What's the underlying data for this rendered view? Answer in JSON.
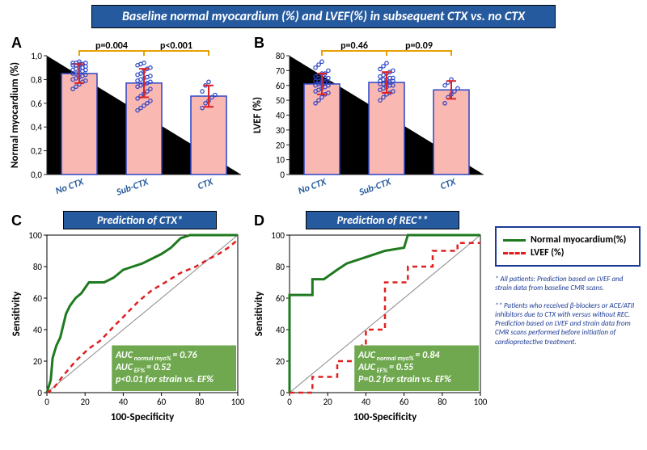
{
  "title": "Baseline normal myocardium (%) and LVEF(%) in subsequent CTX vs. no CTX",
  "panels": {
    "A": "A",
    "B": "B",
    "C": "C",
    "D": "D"
  },
  "subtitles": {
    "C": "Prediction of CTX*",
    "D": "Prediction of REC**"
  },
  "legend": {
    "a": "Normal myocardium(%)",
    "b": "LVEF (%)"
  },
  "legend_colors": {
    "a": "#1f7a1f",
    "b": "#e02020"
  },
  "footnotes": {
    "a": "* All patients: Prediction based on LVEF and strain data from baseline CMR scans.",
    "b": "** Patients who received β-blockers or ACE/ATII inhibitors due to CTX with versus without REC. Prediction based on LVEF and strain data from CMR scans performed before initiation of cardioprotective treatment."
  },
  "barA": {
    "ylabel": "Normal myocardium (%)",
    "ymin": 0.0,
    "ymax": 1.0,
    "ytick": 0.2,
    "cats": [
      "No CTX",
      "Sub-CTX",
      "CTX"
    ],
    "means": [
      0.85,
      0.77,
      0.66
    ],
    "err": [
      0.08,
      0.12,
      0.09
    ],
    "pvals": [
      "p=0.004",
      "p<0.001"
    ],
    "dots": [
      [
        0.72,
        0.74,
        0.76,
        0.78,
        0.79,
        0.8,
        0.81,
        0.82,
        0.83,
        0.84,
        0.85,
        0.85,
        0.86,
        0.87,
        0.88,
        0.88,
        0.89,
        0.9,
        0.9,
        0.91,
        0.92,
        0.92,
        0.93,
        0.93,
        0.94,
        0.94,
        0.94,
        0.95
      ],
      [
        0.54,
        0.56,
        0.58,
        0.6,
        0.62,
        0.64,
        0.66,
        0.68,
        0.7,
        0.72,
        0.74,
        0.75,
        0.76,
        0.77,
        0.78,
        0.79,
        0.8,
        0.81,
        0.82,
        0.83,
        0.84,
        0.85,
        0.87,
        0.89,
        0.9,
        0.92,
        0.93,
        0.94
      ],
      [
        0.56,
        0.6,
        0.62,
        0.65,
        0.67,
        0.7,
        0.75,
        0.78
      ]
    ],
    "bar_color": "#f9b8b2",
    "bar_stroke": "#2a44c7",
    "err_color": "#e02020",
    "dot_stroke": "#2a44c7",
    "bar_width": 0.55
  },
  "barB": {
    "ylabel": "LVEF (%)",
    "ymin": 0,
    "ymax": 80,
    "ytick": 10,
    "cats": [
      "No CTX",
      "Sub-CTX",
      "CTX"
    ],
    "means": [
      61,
      62,
      57
    ],
    "err": [
      7,
      7,
      6
    ],
    "pvals": [
      "p=0.46",
      "p=0.09"
    ],
    "dots": [
      [
        48,
        50,
        52,
        54,
        55,
        56,
        57,
        58,
        59,
        60,
        60,
        61,
        61,
        62,
        62,
        63,
        63,
        64,
        65,
        65,
        66,
        67,
        68,
        68,
        70,
        72,
        74,
        76
      ],
      [
        50,
        52,
        54,
        55,
        56,
        57,
        58,
        59,
        60,
        60,
        61,
        61,
        62,
        62,
        63,
        63,
        64,
        64,
        65,
        65,
        66,
        67,
        68,
        69,
        70,
        71,
        73,
        75
      ],
      [
        48,
        52,
        54,
        56,
        58,
        60,
        62,
        64
      ]
    ],
    "bar_color": "#f9b8b2",
    "bar_stroke": "#2a44c7",
    "err_color": "#e02020",
    "dot_stroke": "#2a44c7",
    "bar_width": 0.55
  },
  "rocC": {
    "xlabel": "100-Specificity",
    "ylabel": "Sensitivity",
    "xlim": [
      0,
      100
    ],
    "ylim": [
      0,
      100
    ],
    "xtick": 20,
    "ytick": 20,
    "colorA": "#1f7a1f",
    "colorB": "#e02020",
    "diag": "#aaaaaa",
    "curveA": [
      [
        0,
        0
      ],
      [
        2,
        8
      ],
      [
        3,
        22
      ],
      [
        5,
        30
      ],
      [
        7,
        35
      ],
      [
        8,
        40
      ],
      [
        10,
        50
      ],
      [
        12,
        55
      ],
      [
        15,
        60
      ],
      [
        18,
        63
      ],
      [
        22,
        70
      ],
      [
        30,
        70
      ],
      [
        35,
        73
      ],
      [
        40,
        78
      ],
      [
        45,
        80
      ],
      [
        50,
        82
      ],
      [
        60,
        88
      ],
      [
        65,
        92
      ],
      [
        70,
        98
      ],
      [
        75,
        100
      ],
      [
        100,
        100
      ]
    ],
    "curveB": [
      [
        0,
        0
      ],
      [
        3,
        2
      ],
      [
        8,
        10
      ],
      [
        15,
        20
      ],
      [
        22,
        28
      ],
      [
        28,
        33
      ],
      [
        35,
        42
      ],
      [
        40,
        48
      ],
      [
        48,
        58
      ],
      [
        55,
        65
      ],
      [
        62,
        70
      ],
      [
        70,
        76
      ],
      [
        78,
        80
      ],
      [
        85,
        85
      ],
      [
        90,
        88
      ],
      [
        95,
        92
      ],
      [
        98,
        95
      ],
      [
        100,
        97
      ]
    ],
    "box": {
      "l1": "AUC",
      "s1": "normal myo%",
      "v1": "= 0.76",
      "l2": "AUC",
      "s2": "EF%",
      "v2": "= 0.52",
      "l3": "p<0.01 for strain vs. EF%"
    }
  },
  "rocD": {
    "xlabel": "100-Specificity",
    "ylabel": "Sensitivity",
    "xlim": [
      0,
      100
    ],
    "ylim": [
      0,
      100
    ],
    "xtick": 20,
    "ytick": 20,
    "colorA": "#1f7a1f",
    "colorB": "#e02020",
    "diag": "#aaaaaa",
    "curveA": [
      [
        0,
        0
      ],
      [
        0,
        62
      ],
      [
        12,
        62
      ],
      [
        12,
        72
      ],
      [
        18,
        72
      ],
      [
        25,
        78
      ],
      [
        30,
        82
      ],
      [
        40,
        86
      ],
      [
        50,
        90
      ],
      [
        60,
        92
      ],
      [
        62,
        100
      ],
      [
        100,
        100
      ]
    ],
    "curveB": [
      [
        0,
        0
      ],
      [
        12,
        0
      ],
      [
        12,
        10
      ],
      [
        25,
        10
      ],
      [
        25,
        20
      ],
      [
        38,
        20
      ],
      [
        38,
        30
      ],
      [
        40,
        30
      ],
      [
        40,
        40
      ],
      [
        50,
        40
      ],
      [
        50,
        70
      ],
      [
        62,
        70
      ],
      [
        62,
        80
      ],
      [
        75,
        80
      ],
      [
        75,
        90
      ],
      [
        88,
        90
      ],
      [
        88,
        95
      ],
      [
        100,
        95
      ]
    ],
    "box": {
      "l1": "AUC",
      "s1": "normal myo%",
      "v1": "= 0.84",
      "l2": "AUC",
      "s2": "EF%",
      "v2": "= 0.55",
      "l3": "P=0.2 for strain vs. EF%"
    }
  }
}
